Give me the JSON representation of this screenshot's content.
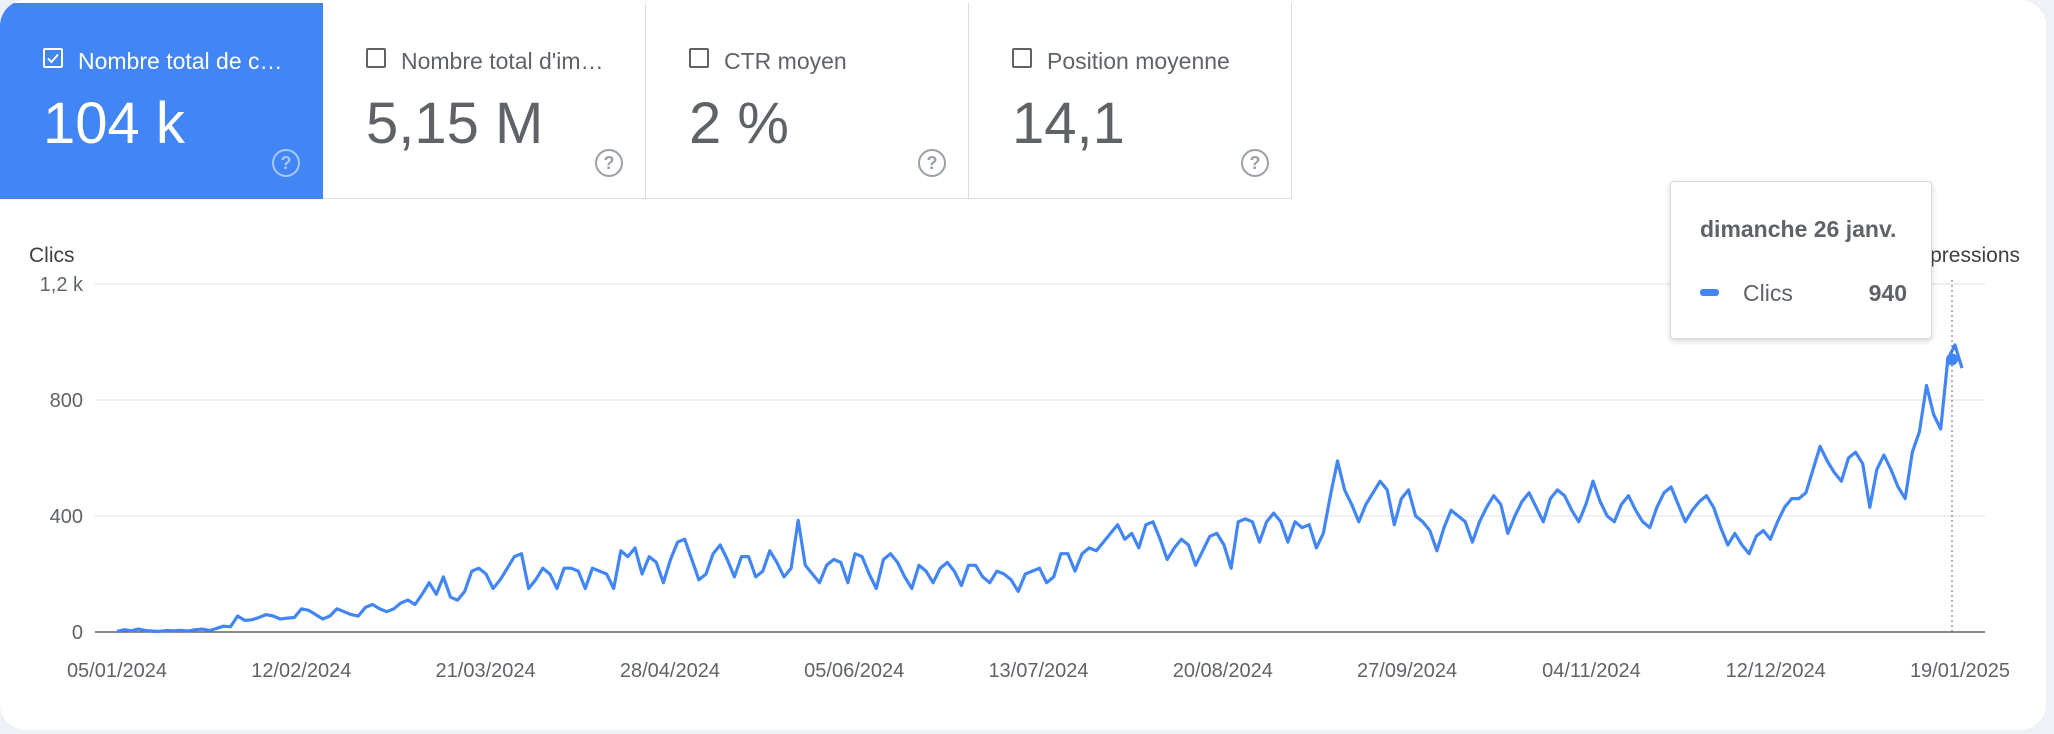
{
  "metrics": [
    {
      "label": "Nombre total de c…",
      "value": "104 k",
      "checked": true
    },
    {
      "label": "Nombre total d'im…",
      "value": "5,15 M",
      "checked": false
    },
    {
      "label": "CTR moyen",
      "value": "2 %",
      "checked": false
    },
    {
      "label": "Position moyenne",
      "value": "14,1",
      "checked": false
    }
  ],
  "help_glyph": "?",
  "tooltip": {
    "date": "dimanche 26 janv.",
    "series": "Clics",
    "value": "940"
  },
  "colors": {
    "accent": "#4285f4",
    "text": "#5f6368",
    "grid": "#e0e0e0"
  },
  "chart_data": {
    "type": "line",
    "ylabel": "Clics",
    "y2label": "Impressions",
    "ylim": [
      0,
      1200
    ],
    "yticks": [
      "0",
      "400",
      "800",
      "1,2 k"
    ],
    "ytick_values": [
      0,
      400,
      800,
      1200
    ],
    "xticks": [
      "05/01/2024",
      "12/02/2024",
      "21/03/2024",
      "28/04/2024",
      "05/06/2024",
      "13/07/2024",
      "20/08/2024",
      "27/09/2024",
      "04/11/2024",
      "12/12/2024",
      "19/01/2025"
    ],
    "x_start": "05/01/2024",
    "x_end": "28/01/2025",
    "highlight": {
      "date": "26/01/2025",
      "value": 940
    },
    "series": [
      {
        "name": "Clics",
        "sampling": "every 2 days",
        "values": [
          2,
          8,
          4,
          10,
          5,
          3,
          2,
          5,
          4,
          6,
          3,
          8,
          10,
          5,
          12,
          20,
          18,
          55,
          40,
          42,
          50,
          60,
          55,
          45,
          48,
          50,
          80,
          75,
          60,
          45,
          55,
          80,
          70,
          60,
          55,
          85,
          95,
          80,
          70,
          80,
          100,
          110,
          95,
          130,
          170,
          130,
          190,
          120,
          110,
          140,
          210,
          220,
          200,
          150,
          180,
          220,
          260,
          270,
          150,
          180,
          220,
          200,
          150,
          220,
          220,
          210,
          150,
          220,
          210,
          200,
          150,
          280,
          260,
          290,
          200,
          260,
          240,
          170,
          250,
          310,
          320,
          250,
          180,
          200,
          270,
          300,
          250,
          190,
          260,
          260,
          190,
          210,
          280,
          240,
          190,
          220,
          385,
          230,
          200,
          170,
          230,
          250,
          240,
          170,
          270,
          260,
          200,
          150,
          250,
          270,
          240,
          190,
          150,
          230,
          210,
          170,
          220,
          240,
          210,
          160,
          230,
          230,
          190,
          170,
          210,
          200,
          180,
          140,
          200,
          210,
          220,
          170,
          190,
          270,
          270,
          210,
          270,
          290,
          280,
          310,
          340,
          370,
          320,
          340,
          290,
          370,
          380,
          320,
          250,
          290,
          320,
          300,
          230,
          280,
          330,
          340,
          300,
          220,
          380,
          390,
          380,
          310,
          380,
          410,
          380,
          310,
          380,
          360,
          370,
          290,
          340,
          470,
          590,
          490,
          440,
          380,
          440,
          480,
          520,
          490,
          370,
          460,
          490,
          400,
          380,
          350,
          280,
          360,
          420,
          400,
          380,
          310,
          380,
          430,
          470,
          440,
          340,
          400,
          450,
          480,
          430,
          380,
          460,
          490,
          470,
          420,
          380,
          440,
          520,
          450,
          400,
          380,
          440,
          470,
          420,
          380,
          360,
          430,
          480,
          500,
          440,
          380,
          420,
          450,
          470,
          430,
          360,
          300,
          340,
          300,
          270,
          330,
          350,
          320,
          380,
          430,
          460,
          460,
          480,
          560,
          640,
          590,
          550,
          520,
          600,
          620,
          580,
          430,
          560,
          610,
          560,
          500,
          460,
          620,
          690,
          850,
          750,
          700,
          940,
          990,
          910
        ]
      }
    ]
  }
}
